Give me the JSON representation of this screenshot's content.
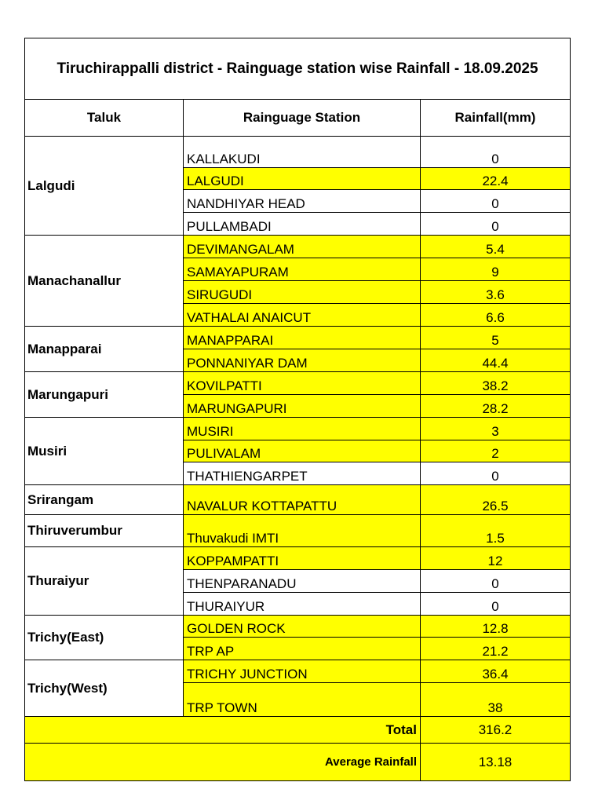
{
  "title": "Tiruchirappalli district  - Rainguage station wise Rainfall - 18.09.2025",
  "headers": {
    "taluk": "Taluk",
    "station": "Rainguage Station",
    "rainfall": "Rainfall(mm)"
  },
  "highlight_color": "#ffff00",
  "groups": [
    {
      "taluk": "Lalgudi",
      "stations": [
        {
          "name": "KALLAKUDI",
          "rainfall": "0",
          "highlighted": false
        },
        {
          "name": "LALGUDI",
          "rainfall": "22.4",
          "highlighted": true
        },
        {
          "name": "NANDHIYAR HEAD",
          "rainfall": "0",
          "highlighted": false
        },
        {
          "name": "PULLAMBADI",
          "rainfall": "0",
          "highlighted": false
        }
      ]
    },
    {
      "taluk": "Manachanallur",
      "stations": [
        {
          "name": "DEVIMANGALAM",
          "rainfall": "5.4",
          "highlighted": true
        },
        {
          "name": "SAMAYAPURAM",
          "rainfall": "9",
          "highlighted": true
        },
        {
          "name": "SIRUGUDI",
          "rainfall": "3.6",
          "highlighted": true
        },
        {
          "name": "VATHALAI ANAICUT",
          "rainfall": "6.6",
          "highlighted": true
        }
      ]
    },
    {
      "taluk": "Manapparai",
      "stations": [
        {
          "name": "MANAPPARAI",
          "rainfall": "5",
          "highlighted": true
        },
        {
          "name": "PONNANIYAR DAM",
          "rainfall": "44.4",
          "highlighted": true
        }
      ]
    },
    {
      "taluk": "Marungapuri",
      "stations": [
        {
          "name": "KOVILPATTI",
          "rainfall": "38.2",
          "highlighted": true
        },
        {
          "name": "MARUNGAPURI",
          "rainfall": "28.2",
          "highlighted": true
        }
      ]
    },
    {
      "taluk": "Musiri",
      "stations": [
        {
          "name": "MUSIRI",
          "rainfall": "3",
          "highlighted": true
        },
        {
          "name": "PULIVALAM",
          "rainfall": "2",
          "highlighted": true
        },
        {
          "name": "THATHIENGARPET",
          "rainfall": "0",
          "highlighted": false
        }
      ]
    },
    {
      "taluk": "Srirangam",
      "stations": [
        {
          "name": "NAVALUR KOTTAPATTU",
          "rainfall": "26.5",
          "highlighted": true
        }
      ]
    },
    {
      "taluk": "Thiruverumbur",
      "stations": [
        {
          "name": "Thuvakudi IMTI",
          "rainfall": "1.5",
          "highlighted": true
        }
      ]
    },
    {
      "taluk": "Thuraiyur",
      "stations": [
        {
          "name": "KOPPAMPATTI",
          "rainfall": "12",
          "highlighted": true
        },
        {
          "name": "THENPARANADU",
          "rainfall": "0",
          "highlighted": false
        },
        {
          "name": "THURAIYUR",
          "rainfall": "0",
          "highlighted": false
        }
      ]
    },
    {
      "taluk": "Trichy(East)",
      "stations": [
        {
          "name": "GOLDEN ROCK",
          "rainfall": "12.8",
          "highlighted": true
        },
        {
          "name": "TRP AP",
          "rainfall": "21.2",
          "highlighted": true
        }
      ]
    },
    {
      "taluk": "Trichy(West)",
      "stations": [
        {
          "name": "TRICHY JUNCTION",
          "rainfall": "36.4",
          "highlighted": true
        },
        {
          "name": "TRP TOWN",
          "rainfall": "38",
          "highlighted": true
        }
      ]
    }
  ],
  "total": {
    "label": "Total",
    "value": "316.2"
  },
  "average": {
    "label": "Average Rainfall",
    "value": "13.18"
  }
}
